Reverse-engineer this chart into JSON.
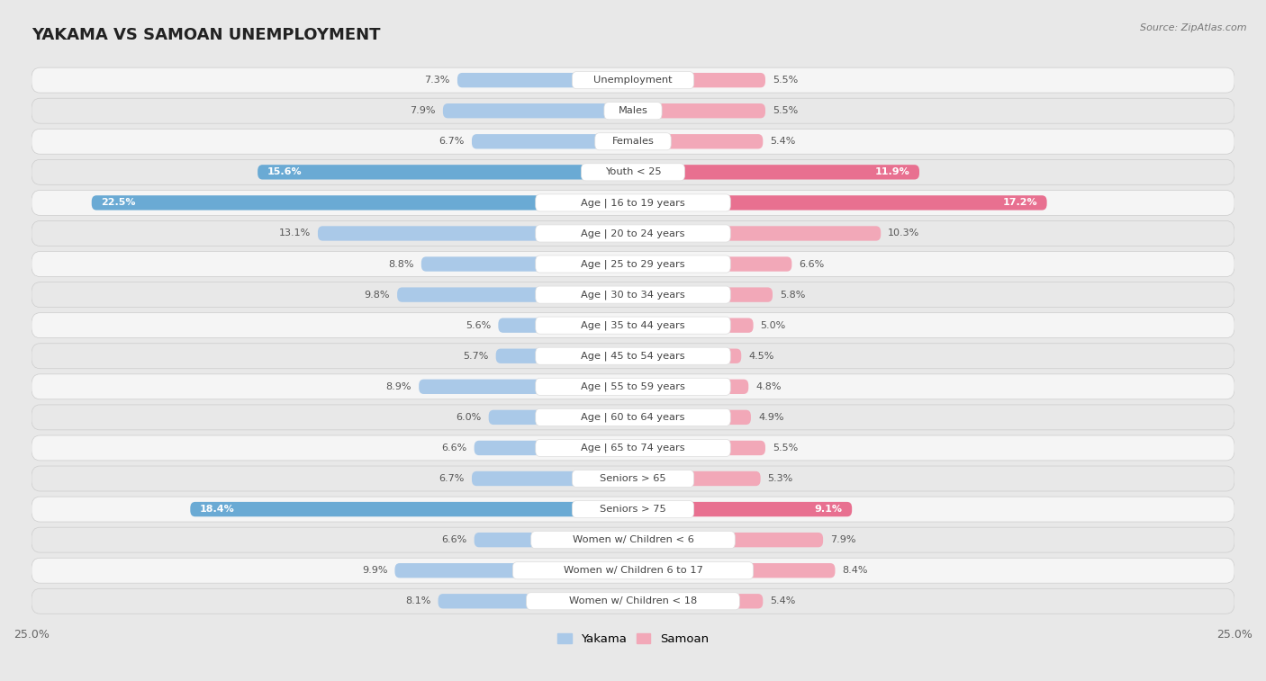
{
  "title": "YAKAMA VS SAMOAN UNEMPLOYMENT",
  "source": "Source: ZipAtlas.com",
  "categories": [
    "Unemployment",
    "Males",
    "Females",
    "Youth < 25",
    "Age | 16 to 19 years",
    "Age | 20 to 24 years",
    "Age | 25 to 29 years",
    "Age | 30 to 34 years",
    "Age | 35 to 44 years",
    "Age | 45 to 54 years",
    "Age | 55 to 59 years",
    "Age | 60 to 64 years",
    "Age | 65 to 74 years",
    "Seniors > 65",
    "Seniors > 75",
    "Women w/ Children < 6",
    "Women w/ Children 6 to 17",
    "Women w/ Children < 18"
  ],
  "yakama_values": [
    7.3,
    7.9,
    6.7,
    15.6,
    22.5,
    13.1,
    8.8,
    9.8,
    5.6,
    5.7,
    8.9,
    6.0,
    6.6,
    6.7,
    18.4,
    6.6,
    9.9,
    8.1
  ],
  "samoan_values": [
    5.5,
    5.5,
    5.4,
    11.9,
    17.2,
    10.3,
    6.6,
    5.8,
    5.0,
    4.5,
    4.8,
    4.9,
    5.5,
    5.3,
    9.1,
    7.9,
    8.4,
    5.4
  ],
  "yakama_color_normal": "#aac9e8",
  "samoan_color_normal": "#f2a8b8",
  "yakama_color_highlight": "#6aaad4",
  "samoan_color_highlight": "#e87090",
  "highlight_rows": [
    3,
    4,
    14
  ],
  "xlim": 25.0,
  "bg_color": "#e8e8e8",
  "row_bg_colors": [
    "#f5f5f5",
    "#e8e8e8"
  ],
  "row_border_color": "#cccccc",
  "label_bg_color": "#ffffff",
  "label_text_color": "#444444",
  "value_text_normal": "#555555",
  "value_text_highlight": "#ffffff",
  "tick_label_color": "#666666"
}
